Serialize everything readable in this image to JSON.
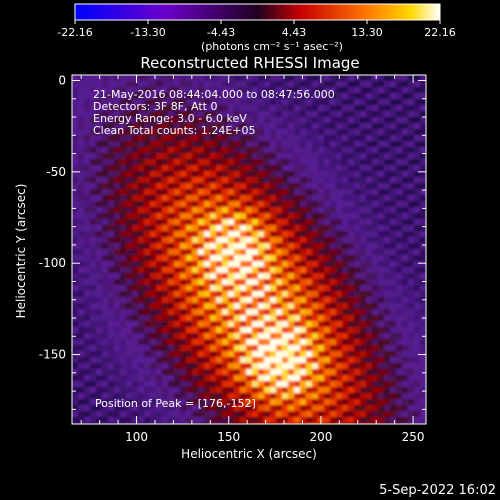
{
  "chart_data": {
    "type": "heatmap",
    "title": "Reconstructed RHESSI Image",
    "xlabel": "Heliocentric X (arcsec)",
    "ylabel": "Heliocentric Y (arcsec)",
    "xlim": [
      65,
      257
    ],
    "ylim": [
      -188,
      3
    ],
    "x_ticks": [
      100,
      150,
      200,
      250
    ],
    "y_ticks": [
      0,
      -50,
      -100,
      -150
    ],
    "colorbar": {
      "ticks": [
        "-22.16",
        "-13.30",
        "-4.43",
        "4.43",
        "13.30",
        "22.16"
      ],
      "range": [
        -22.16,
        22.16
      ],
      "unit_label": "(photons cm⁻² s⁻¹ asec⁻²)"
    },
    "info_lines": [
      "21-May-2016 08:44:04.000 to 08:47:56.000",
      "Detectors: 3F 8F, Att 0",
      "Energy Range: 3.0 - 6.0 keV",
      "Clean     Total counts: 1.24E+05"
    ],
    "peak_label": "Position of Peak = [176,-152]",
    "peaks": [
      {
        "x": 176,
        "y": -152
      },
      {
        "x": 152,
        "y": -89
      }
    ],
    "timestamp": "5-Sep-2022 16:02"
  }
}
